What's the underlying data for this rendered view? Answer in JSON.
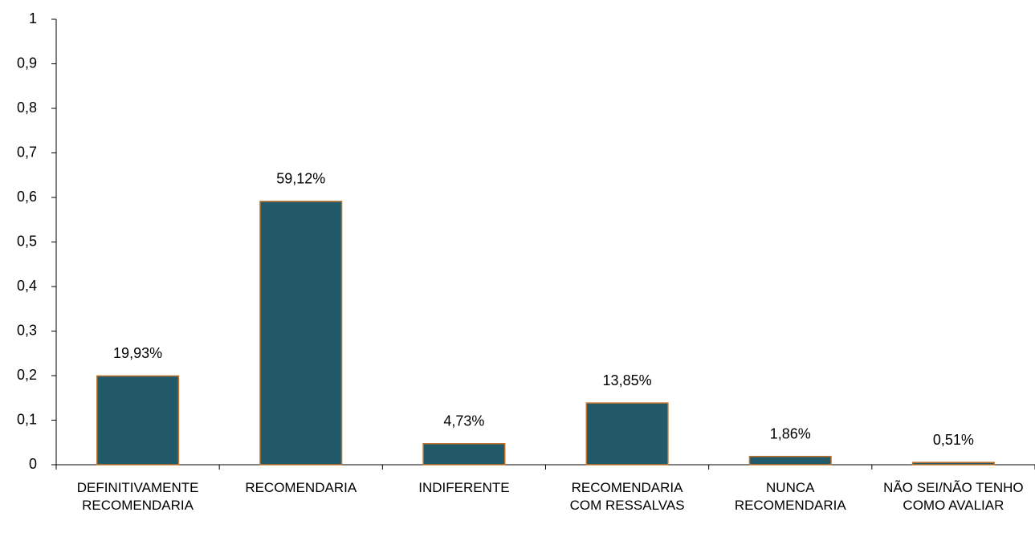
{
  "chart_data": {
    "type": "bar",
    "categories": [
      "DEFINITIVAMENTE RECOMENDARIA",
      "RECOMENDARIA",
      "INDIFERENTE",
      "RECOMENDARIA COM RESSALVAS",
      "NUNCA RECOMENDARIA",
      "NÃO SEI/NÃO TENHO COMO AVALIAR"
    ],
    "values": [
      0.1993,
      0.5912,
      0.0473,
      0.1385,
      0.0186,
      0.0051
    ],
    "value_labels": [
      "19,93%",
      "59,12%",
      "4,73%",
      "13,85%",
      "1,86%",
      "0,51%"
    ],
    "color": "#235a6a",
    "edge_color": "#c0732a",
    "ylim": [
      0,
      1
    ],
    "yticks": [
      0,
      {
        "value": 0.1,
        "label": "0,1"
      },
      {
        "value": 0.2,
        "label": "0,2"
      },
      {
        "value": 0.3,
        "label": "0,3"
      },
      {
        "value": 0.4,
        "label": "0,4"
      },
      {
        "value": 0.5,
        "label": "0,5"
      },
      {
        "value": 0.6,
        "label": "0,6"
      },
      {
        "value": 0.7,
        "label": "0,7"
      },
      {
        "value": 0.8,
        "label": "0,8"
      },
      {
        "value": 0.9,
        "label": "0,9"
      },
      1
    ],
    "grid": false
  }
}
